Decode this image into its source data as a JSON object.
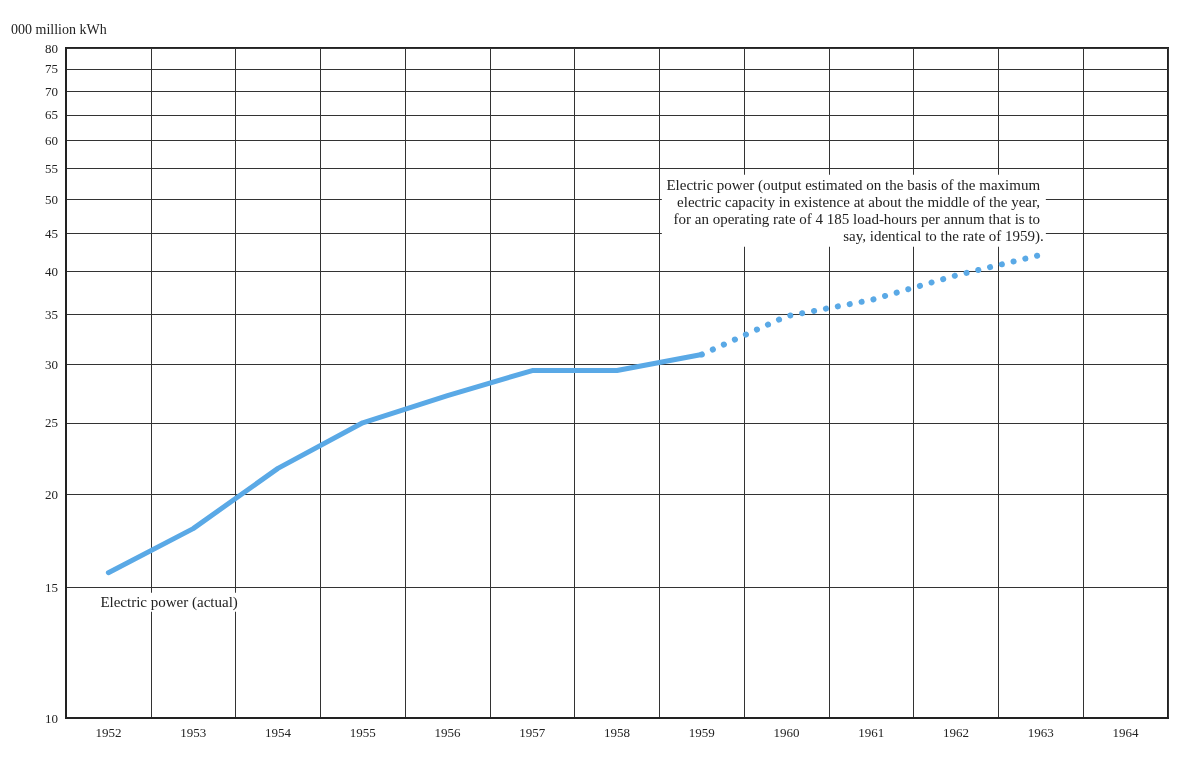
{
  "chart_data": {
    "type": "line",
    "ylabel": "000 million kWh",
    "categories": [
      "1952",
      "1953",
      "1954",
      "1955",
      "1956",
      "1957",
      "1958",
      "1959",
      "1960",
      "1961",
      "1962",
      "1963",
      "1964"
    ],
    "series": [
      {
        "name": "Electric power (actual)",
        "color": "#5aa9e6",
        "line_style": "solid",
        "values": [
          15.7,
          18.0,
          21.7,
          25.0,
          27.2,
          29.4,
          29.4,
          30.9,
          null,
          null,
          null,
          null,
          null
        ]
      },
      {
        "name": "Electric power (output estimated on the basis of the maximum electric capacity in existence at about the middle of the year, for an operating rate of 4 185 load-hours per annum that is to say, identical to the rate of 1959).",
        "color": "#5aa9e6",
        "line_style": "dotted",
        "values": [
          null,
          null,
          null,
          null,
          null,
          null,
          null,
          30.9,
          34.8,
          36.6,
          39.5,
          42.1,
          null
        ]
      }
    ],
    "log": "y",
    "ylim": [
      10,
      80
    ],
    "yticks": [
      10,
      15,
      20,
      25,
      30,
      35,
      40,
      45,
      50,
      55,
      60,
      65,
      70,
      75,
      80
    ],
    "grid": true,
    "legend": false,
    "marker": "none"
  }
}
